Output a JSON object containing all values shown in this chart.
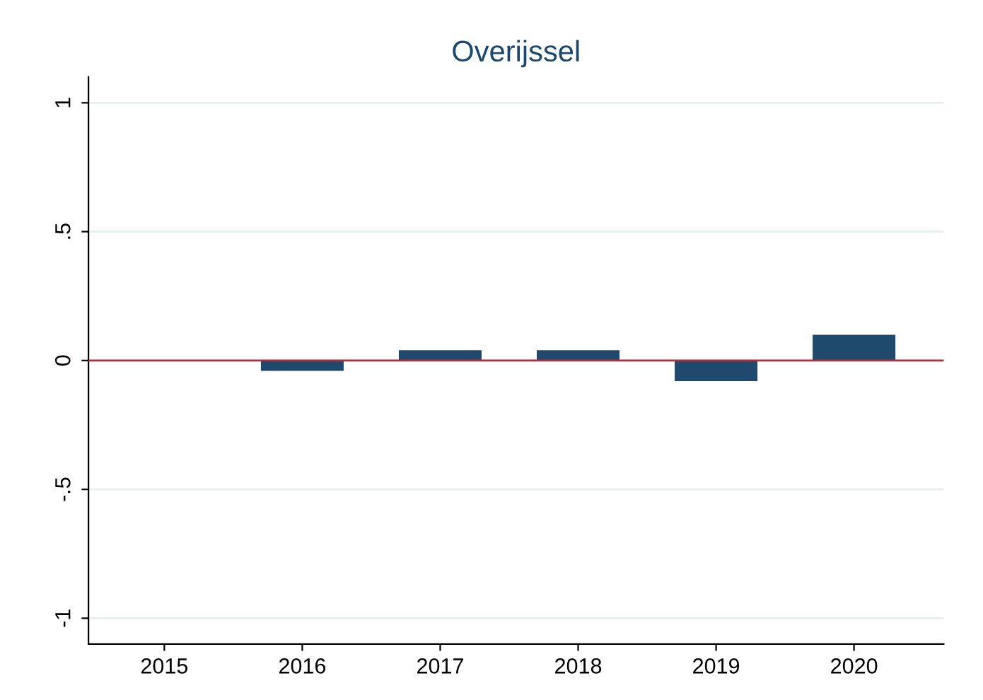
{
  "chart_data": {
    "type": "bar",
    "title": "Overijssel",
    "categories": [
      "2015",
      "2016",
      "2017",
      "2018",
      "2019",
      "2020"
    ],
    "values": [
      null,
      -0.04,
      0.04,
      0.04,
      -0.08,
      0.1
    ],
    "color": "#1f4a6e",
    "ylim": [
      -1.1,
      1.1
    ],
    "yticks": [
      {
        "value": -1,
        "label": "-1"
      },
      {
        "value": -0.5,
        "label": "-.5"
      },
      0,
      {
        "value": 0.5,
        "label": ".5"
      },
      1
    ],
    "grid": "y",
    "ref_lines": [
      {
        "axis": "y",
        "value": 0,
        "color": "#b0303c"
      }
    ]
  }
}
